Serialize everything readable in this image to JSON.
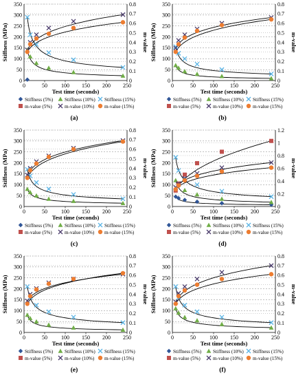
{
  "figure": {
    "panels": [
      {
        "label": "(a)"
      },
      {
        "label": "(b)"
      },
      {
        "label": "(c)"
      },
      {
        "label": "(d)"
      },
      {
        "label": "(e)"
      },
      {
        "label": "(f)"
      }
    ]
  },
  "chart_data": [
    {
      "type": "scatter",
      "panel": "(a)",
      "xlabel": "Test time (seconds)",
      "ylabel": "Stiffness (MPa)",
      "y2label": "m-value",
      "xlim": [
        0,
        250
      ],
      "ylim": [
        0,
        350
      ],
      "y2lim": [
        0,
        0.8
      ],
      "xticks": [
        0,
        50,
        100,
        150,
        200,
        250
      ],
      "yticks": [
        0,
        50,
        100,
        150,
        200,
        250,
        300,
        350
      ],
      "y2ticks": [
        0,
        0.1,
        0.2,
        0.3,
        0.4,
        0.5,
        0.6,
        0.7,
        0.8
      ],
      "legend": [
        "Stiffness (5%)",
        "Stiffness (10%)",
        "Stiffness (15%)",
        "m-value (5%)",
        "m-value (10%)",
        "m-value (15%)"
      ],
      "x": [
        8,
        15,
        30,
        60,
        120,
        240
      ],
      "series": [
        {
          "name": "Stiffness (5%)",
          "axis": "left",
          "values": [
            4,
            null,
            null,
            null,
            null,
            null
          ]
        },
        {
          "name": "Stiffness (10%)",
          "axis": "left",
          "values": [
            140,
            110,
            80,
            58,
            38,
            22
          ]
        },
        {
          "name": "Stiffness (15%)",
          "axis": "left",
          "values": [
            290,
            210,
            165,
            128,
            95,
            60
          ]
        },
        {
          "name": "m-value (5%)",
          "axis": "right",
          "values": [
            null,
            null,
            null,
            null,
            null,
            null
          ]
        },
        {
          "name": "m-value (10%)",
          "axis": "right",
          "values": [
            0.32,
            0.4,
            0.48,
            0.55,
            0.62,
            0.69
          ]
        },
        {
          "name": "m-value (15%)",
          "axis": "right",
          "values": [
            0.3,
            0.38,
            0.44,
            0.49,
            0.55,
            0.61
          ]
        }
      ]
    },
    {
      "type": "scatter",
      "panel": "(b)",
      "xlabel": "Test time (seconds)",
      "ylabel": "Stiffness (MPa)",
      "y2label": "m-value",
      "xlim": [
        0,
        250
      ],
      "ylim": [
        0,
        350
      ],
      "y2lim": [
        0,
        0.8
      ],
      "xticks": [
        0,
        50,
        100,
        150,
        200,
        250
      ],
      "yticks": [
        0,
        50,
        100,
        150,
        200,
        250,
        300,
        350
      ],
      "y2ticks": [
        0,
        0.1,
        0.2,
        0.3,
        0.4,
        0.5,
        0.6,
        0.7,
        0.8
      ],
      "legend": [
        "Stiffness (5%)",
        "Stiffness (10%)",
        "Stiffness (15%)",
        "m-value (5%)",
        "m-value (10%)",
        "m-value (15%)"
      ],
      "x": [
        8,
        15,
        30,
        60,
        120,
        240
      ],
      "series": [
        {
          "name": "Stiffness (5%)",
          "axis": "left",
          "values": [
            null,
            null,
            null,
            null,
            null,
            null
          ]
        },
        {
          "name": "Stiffness (10%)",
          "axis": "left",
          "values": [
            70,
            58,
            42,
            30,
            20,
            10
          ]
        },
        {
          "name": "Stiffness (15%)",
          "axis": "left",
          "values": [
            155,
            125,
            100,
            75,
            50,
            30
          ]
        },
        {
          "name": "m-value (5%)",
          "axis": "right",
          "values": [
            null,
            null,
            null,
            null,
            null,
            null
          ]
        },
        {
          "name": "m-value (10%)",
          "axis": "right",
          "values": [
            0.34,
            0.42,
            0.48,
            0.54,
            0.6,
            0.66
          ]
        },
        {
          "name": "m-value (15%)",
          "axis": "right",
          "values": [
            0.3,
            0.38,
            0.45,
            0.52,
            0.58,
            0.64
          ]
        }
      ]
    },
    {
      "type": "scatter",
      "panel": "(c)",
      "xlabel": "Test time (seconds)",
      "ylabel": "Stiffness (MPa)",
      "y2label": "m-value",
      "xlim": [
        0,
        250
      ],
      "ylim": [
        0,
        350
      ],
      "y2lim": [
        0,
        0.8
      ],
      "xticks": [
        0,
        50,
        100,
        150,
        200,
        250
      ],
      "yticks": [
        0,
        50,
        100,
        150,
        200,
        250,
        300,
        350
      ],
      "y2ticks": [
        0,
        0.1,
        0.2,
        0.3,
        0.4,
        0.5,
        0.6,
        0.7,
        0.8
      ],
      "legend": [
        "Stiffness (5%)",
        "Stiffness (10%)",
        "Stiffness (15%)",
        "m-value (5%)",
        "m-value (10%)",
        "m-value (15%)"
      ],
      "x": [
        8,
        15,
        30,
        60,
        120,
        240
      ],
      "series": [
        {
          "name": "Stiffness (5%)",
          "axis": "left",
          "values": [
            null,
            null,
            null,
            null,
            null,
            null
          ]
        },
        {
          "name": "Stiffness (10%)",
          "axis": "left",
          "values": [
            80,
            65,
            50,
            35,
            25,
            15
          ]
        },
        {
          "name": "Stiffness (15%)",
          "axis": "left",
          "values": [
            170,
            140,
            110,
            80,
            55,
            35
          ]
        },
        {
          "name": "m-value (5%)",
          "axis": "right",
          "values": [
            null,
            null,
            null,
            null,
            null,
            null
          ]
        },
        {
          "name": "m-value (10%)",
          "axis": "right",
          "values": [
            0.33,
            0.4,
            0.47,
            0.53,
            0.61,
            0.69
          ]
        },
        {
          "name": "m-value (15%)",
          "axis": "right",
          "values": [
            0.3,
            0.38,
            0.45,
            0.52,
            0.6,
            0.68
          ]
        }
      ]
    },
    {
      "type": "scatter",
      "panel": "(d)",
      "xlabel": "Test time (seconds)",
      "ylabel": "Stiffness (MPa)",
      "y2label": "m-value",
      "xlim": [
        0,
        250
      ],
      "ylim": [
        0,
        350
      ],
      "y2lim": [
        0,
        1.2
      ],
      "xticks": [
        0,
        50,
        100,
        150,
        200,
        250
      ],
      "yticks": [
        0,
        50,
        100,
        150,
        200,
        250,
        300,
        350
      ],
      "y2ticks": [
        0,
        0.2,
        0.4,
        0.6,
        0.8,
        1,
        1.2
      ],
      "legend": [
        "Stiffness (5%)",
        "Stiffness (10%)",
        "Stiffness (15%)",
        "m-value (5%)",
        "m-value (10%)",
        "m-value (15%)"
      ],
      "x": [
        8,
        15,
        30,
        60,
        120,
        240
      ],
      "series": [
        {
          "name": "Stiffness (5%)",
          "axis": "left",
          "values": [
            45,
            38,
            30,
            22,
            15,
            8
          ]
        },
        {
          "name": "Stiffness (10%)",
          "axis": "left",
          "values": [
            120,
            100,
            75,
            55,
            35,
            20
          ]
        },
        {
          "name": "Stiffness (15%)",
          "axis": "left",
          "values": [
            225,
            165,
            130,
            100,
            70,
            45
          ]
        },
        {
          "name": "m-value (5%)",
          "axis": "right",
          "values": [
            0.25,
            0.36,
            0.5,
            0.68,
            0.86,
            1.03
          ]
        },
        {
          "name": "m-value (10%)",
          "axis": "right",
          "values": [
            0.3,
            0.36,
            0.44,
            0.52,
            0.61,
            0.69
          ]
        },
        {
          "name": "m-value (15%)",
          "axis": "right",
          "values": [
            0.27,
            0.33,
            0.41,
            0.48,
            0.55,
            0.61
          ]
        }
      ]
    },
    {
      "type": "scatter",
      "panel": "(e)",
      "xlabel": "Test time (seconds)",
      "ylabel": "Stiffness (MPa)",
      "y2label": "m-value",
      "xlim": [
        0,
        250
      ],
      "ylim": [
        0,
        350
      ],
      "y2lim": [
        0,
        0.8
      ],
      "xticks": [
        0,
        50,
        100,
        150,
        200,
        250
      ],
      "yticks": [
        0,
        50,
        100,
        150,
        200,
        250,
        300,
        350
      ],
      "y2ticks": [
        0,
        0.1,
        0.2,
        0.3,
        0.4,
        0.5,
        0.6,
        0.7,
        0.8
      ],
      "legend": [
        "Stiffness (5%)",
        "Stiffness (10%)",
        "Stiffness (15%)",
        "m-value (5%)",
        "m-value (10%)",
        "m-value (15%)"
      ],
      "x": [
        8,
        15,
        30,
        60,
        120,
        240
      ],
      "series": [
        {
          "name": "Stiffness (5%)",
          "axis": "left",
          "values": [
            null,
            null,
            null,
            null,
            null,
            null
          ]
        },
        {
          "name": "Stiffness (10%)",
          "axis": "left",
          "values": [
            80,
            65,
            50,
            35,
            22,
            12
          ]
        },
        {
          "name": "Stiffness (15%)",
          "axis": "left",
          "values": [
            210,
            160,
            125,
            95,
            70,
            45
          ]
        },
        {
          "name": "m-value (5%)",
          "axis": "right",
          "values": [
            null,
            null,
            null,
            null,
            null,
            null
          ]
        },
        {
          "name": "m-value (10%)",
          "axis": "right",
          "values": [
            0.33,
            0.4,
            0.46,
            0.52,
            0.56,
            0.61
          ]
        },
        {
          "name": "m-value (15%)",
          "axis": "right",
          "values": [
            0.3,
            0.38,
            0.45,
            0.51,
            0.56,
            0.62
          ]
        }
      ]
    },
    {
      "type": "scatter",
      "panel": "(f)",
      "xlabel": "Test time (seconds)",
      "ylabel": "Stiffness (MPa)",
      "y2label": "m-value",
      "xlim": [
        0,
        250
      ],
      "ylim": [
        0,
        350
      ],
      "y2lim": [
        0,
        0.8
      ],
      "xticks": [
        0,
        50,
        100,
        150,
        200,
        250
      ],
      "yticks": [
        0,
        50,
        100,
        150,
        200,
        250,
        300,
        350
      ],
      "y2ticks": [
        0,
        0.1,
        0.2,
        0.3,
        0.4,
        0.5,
        0.6,
        0.7,
        0.8
      ],
      "legend": [
        "Stiffness (5%)",
        "Stiffness (10%)",
        "Stiffness (15%)",
        "m-value (5%)",
        "m-value (10%)",
        "m-value (15%)"
      ],
      "x": [
        8,
        15,
        30,
        60,
        120,
        240
      ],
      "series": [
        {
          "name": "Stiffness (5%)",
          "axis": "left",
          "values": [
            null,
            null,
            null,
            null,
            null,
            null
          ]
        },
        {
          "name": "Stiffness (10%)",
          "axis": "left",
          "values": [
            110,
            90,
            70,
            55,
            38,
            22
          ]
        },
        {
          "name": "Stiffness (15%)",
          "axis": "left",
          "values": [
            210,
            160,
            125,
            95,
            70,
            45
          ]
        },
        {
          "name": "m-value (5%)",
          "axis": "right",
          "values": [
            null,
            null,
            null,
            null,
            null,
            null
          ]
        },
        {
          "name": "m-value (10%)",
          "axis": "right",
          "values": [
            0.32,
            0.41,
            0.48,
            0.56,
            0.63,
            0.7
          ]
        },
        {
          "name": "m-value (15%)",
          "axis": "right",
          "values": [
            0.3,
            0.38,
            0.44,
            0.5,
            0.56,
            0.61
          ]
        }
      ]
    }
  ],
  "styles": {
    "stiff5": "#2f5597",
    "stiff10": "#70ad47",
    "stiff15": "#5ab4e5",
    "m5": "#c0504d",
    "m10": "#4a3b6b",
    "m15": "#ed7d31",
    "curve": "#000000",
    "grid": "#9a9a9a"
  }
}
